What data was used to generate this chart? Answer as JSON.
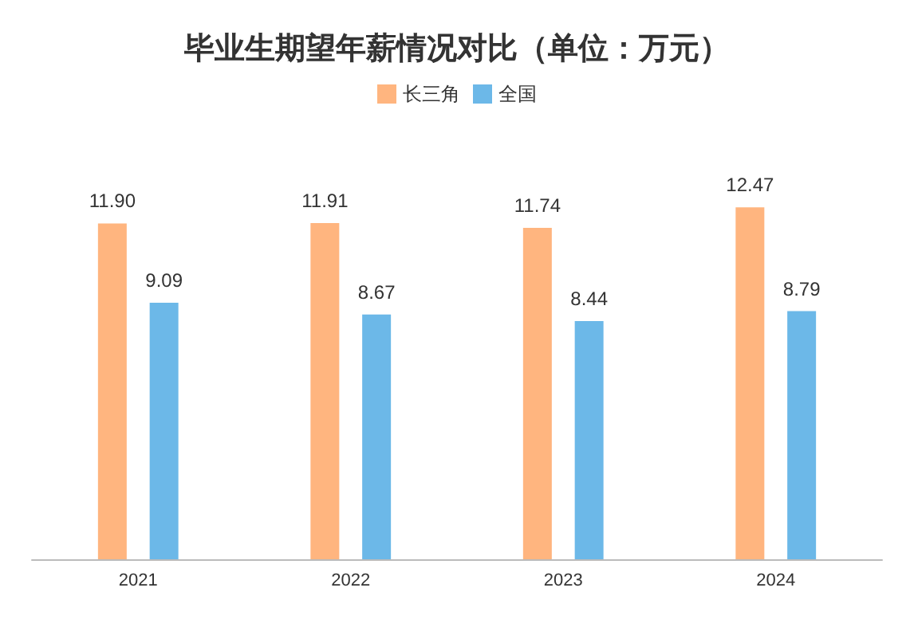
{
  "chart_data": {
    "type": "bar",
    "title": "毕业生期望年薪情况对比（单位：万元）",
    "categories": [
      "2021",
      "2022",
      "2023",
      "2024"
    ],
    "series": [
      {
        "name": "长三角",
        "color": "#ffb57f",
        "values": [
          11.9,
          11.91,
          11.74,
          12.47
        ],
        "value_labels": [
          "11.90",
          "11.91",
          "11.74",
          "12.47"
        ]
      },
      {
        "name": "全国",
        "color": "#6cb8e8",
        "values": [
          9.09,
          8.67,
          8.44,
          8.79
        ],
        "value_labels": [
          "9.09",
          "8.67",
          "8.44",
          "8.79"
        ]
      }
    ],
    "legend": "top"
  }
}
